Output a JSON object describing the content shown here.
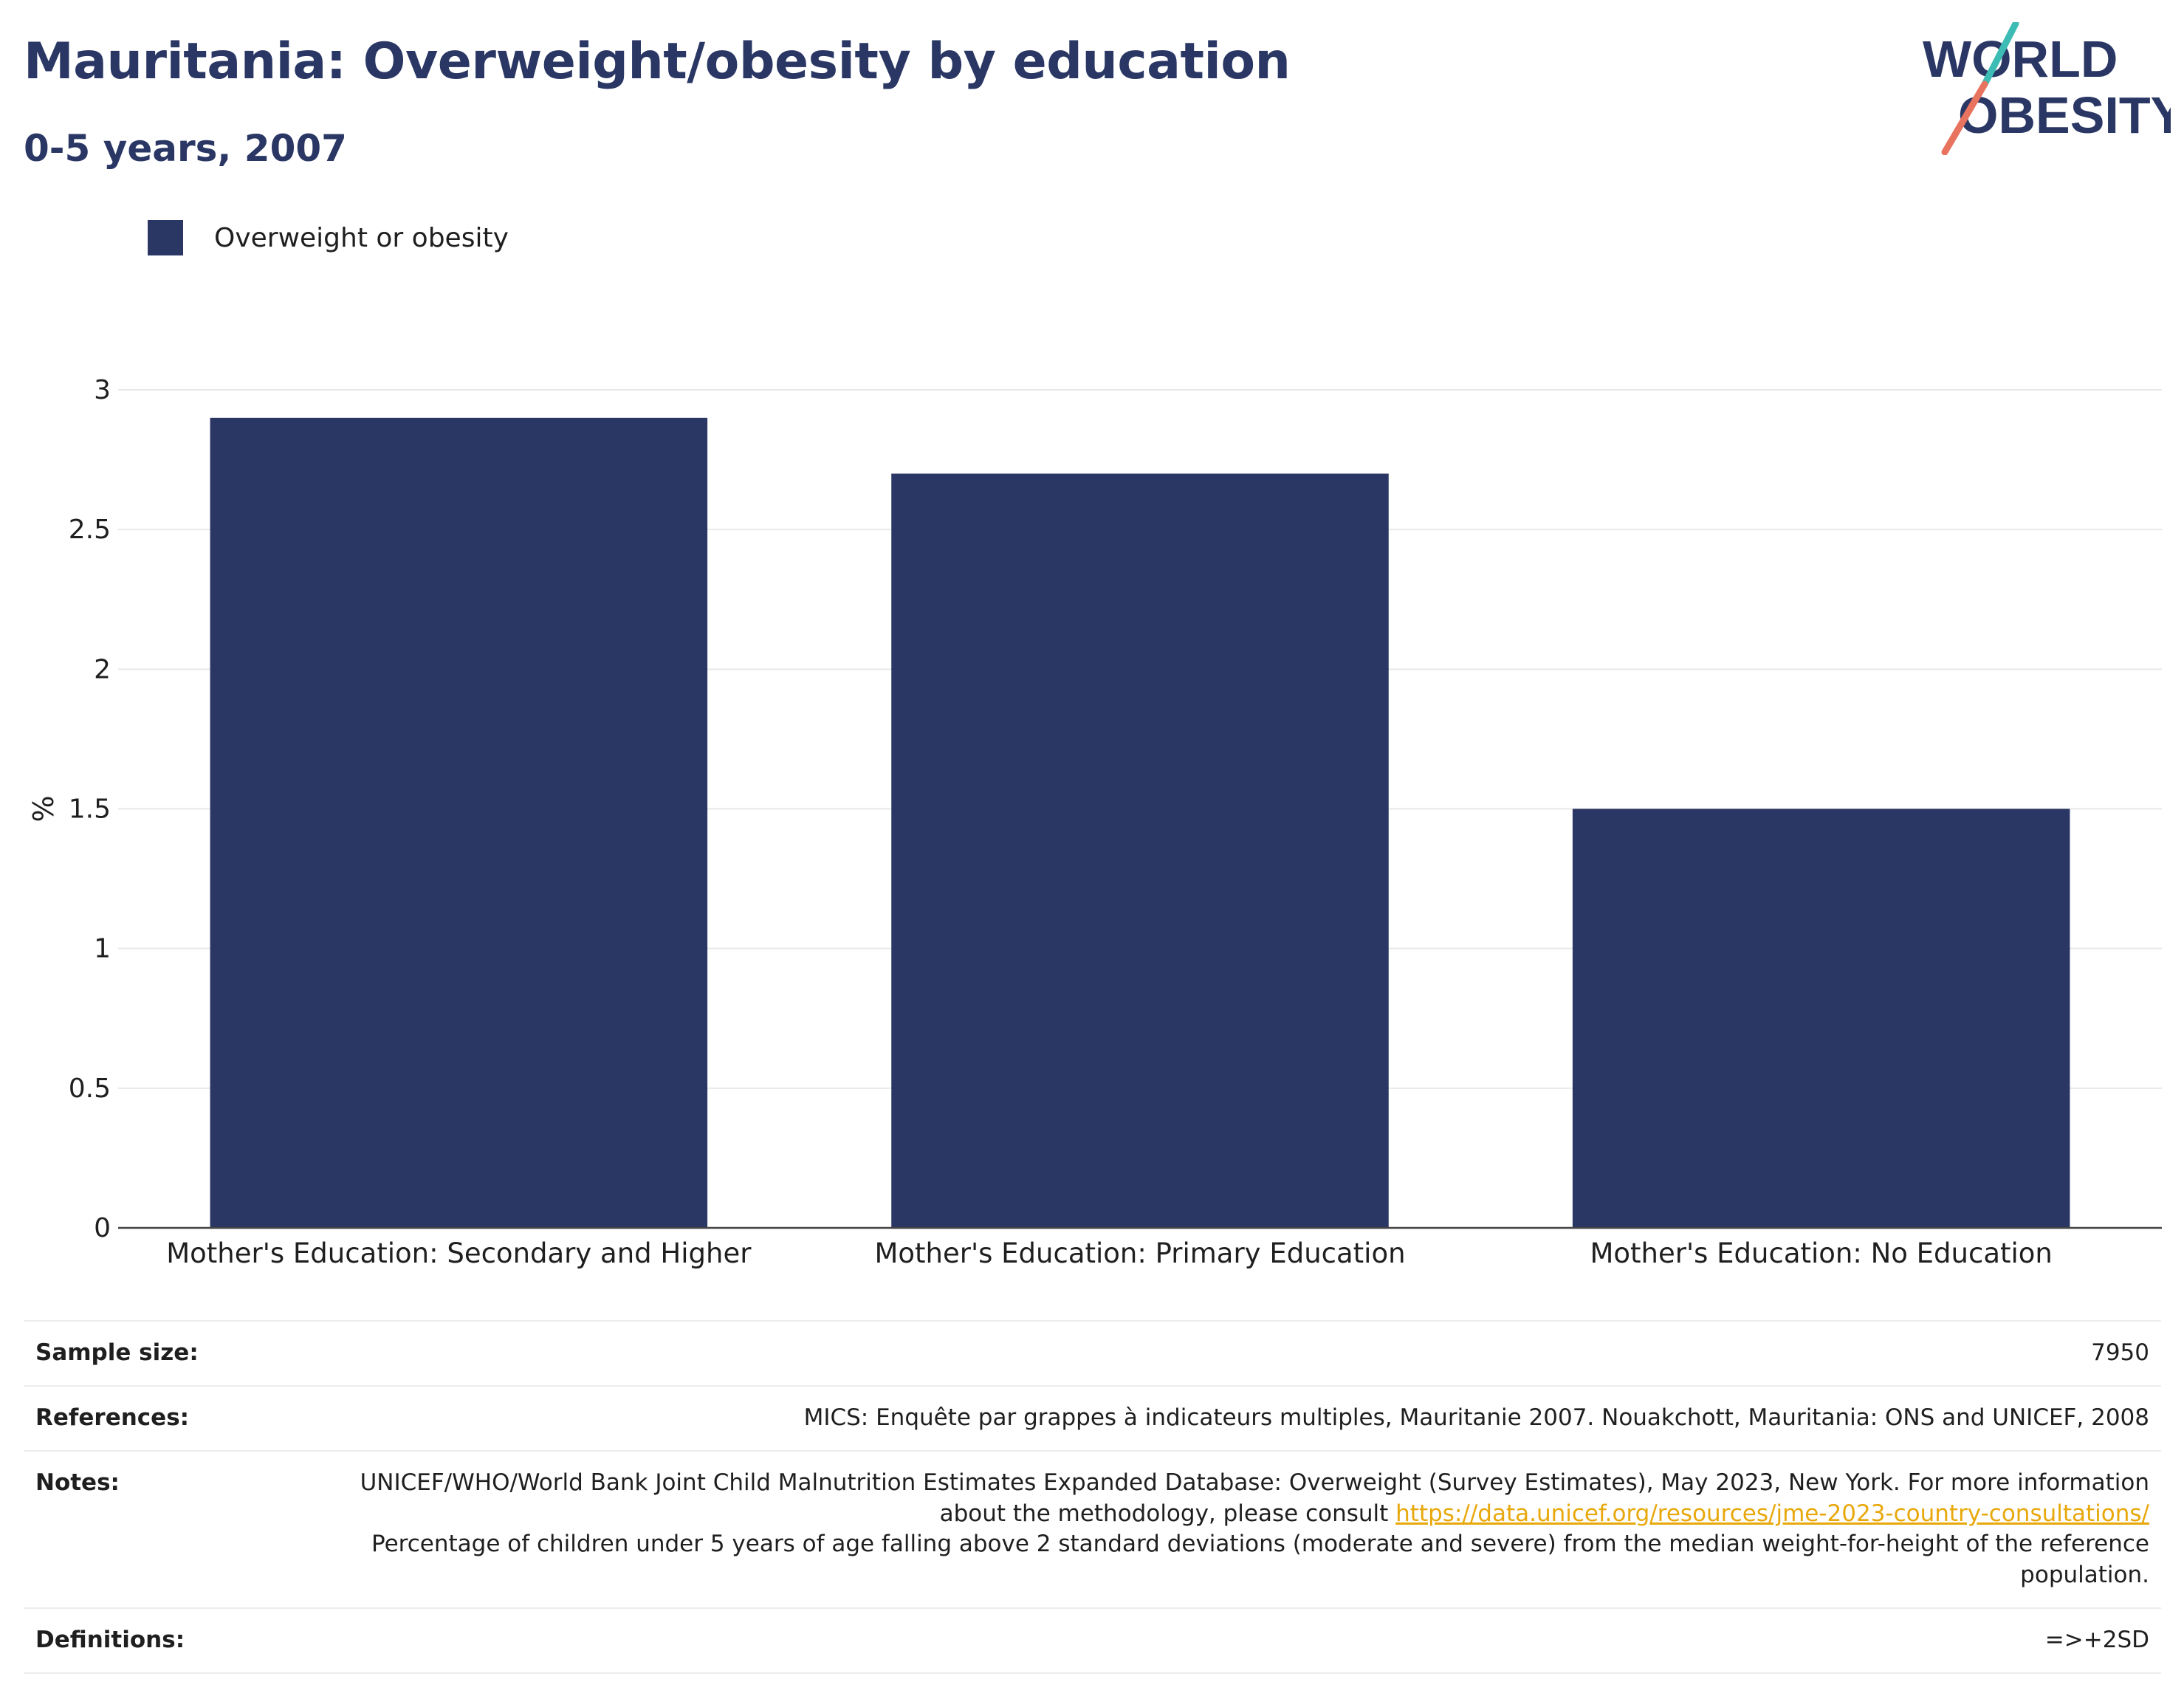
{
  "header": {
    "title": "Mauritania: Overweight/obesity by education",
    "subtitle": "0-5 years, 2007"
  },
  "logo": {
    "line1": "WORLD",
    "line2": "OBESITY"
  },
  "colors": {
    "bar": "#2a3764",
    "title": "#2a3764",
    "link": "#e8a80c",
    "logo_teal": "#3cbcb4",
    "logo_coral": "#e8735f"
  },
  "legend": {
    "label": "Overweight or obesity"
  },
  "chart_data": {
    "type": "bar",
    "categories": [
      "Mother's Education: Secondary and Higher",
      "Mother's Education: Primary Education",
      "Mother's Education: No Education"
    ],
    "series": [
      {
        "name": "Overweight or obesity",
        "values": [
          2.9,
          2.7,
          1.5
        ]
      }
    ],
    "title": "",
    "xlabel": "",
    "ylabel": "%",
    "ylim": [
      0,
      3
    ],
    "yticks": [
      0,
      0.5,
      1,
      1.5,
      2,
      2.5,
      3
    ],
    "ytick_labels": [
      "0",
      "0.5",
      "1",
      "1.5",
      "2",
      "2.5",
      "3"
    ],
    "grid": true,
    "legend_position": "top-left"
  },
  "info": {
    "sample_size": {
      "label": "Sample size:",
      "value": "7950"
    },
    "references": {
      "label": "References:",
      "value": "MICS: Enquête par grappes à indicateurs multiples, Mauritanie 2007. Nouakchott, Mauritania: ONS and UNICEF, 2008"
    },
    "notes": {
      "label": "Notes:",
      "text_before": "UNICEF/WHO/World Bank Joint Child Malnutrition Estimates Expanded Database: Overweight (Survey Estimates), May 2023, New York. For more information about the methodology, please consult",
      "link": "https://data.unicef.org/resources/jme-2023-country-consultations/",
      "text_after": "Percentage of children under 5 years of age falling above 2 standard deviations (moderate and severe) from the median weight-for-height of the reference population."
    },
    "definitions": {
      "label": "Definitions:",
      "value": "=>+2SD"
    }
  }
}
